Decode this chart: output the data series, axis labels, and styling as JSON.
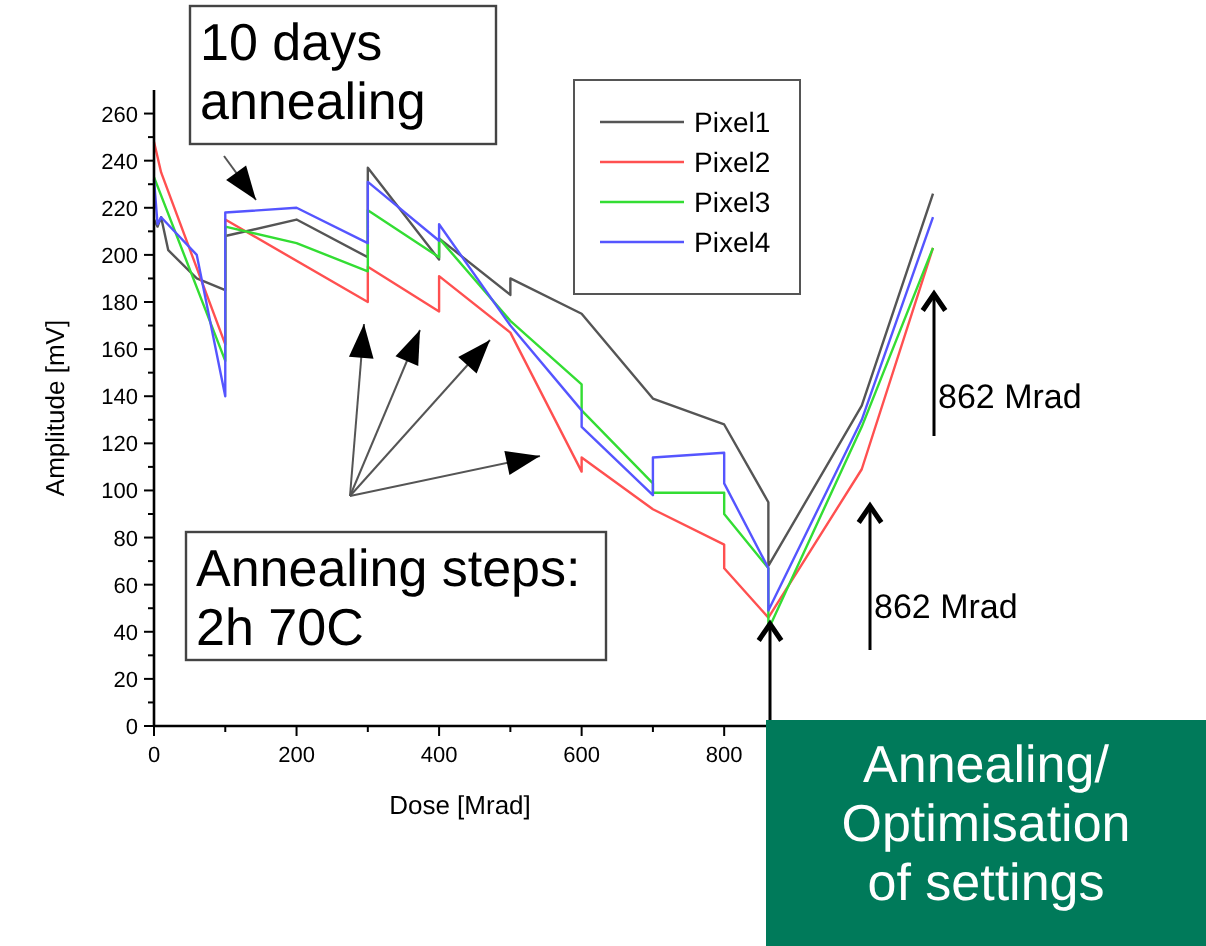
{
  "chart_data": {
    "type": "line",
    "xlabel": "Dose [Mrad]",
    "ylabel": "Amplitude [mV]",
    "xlim": [
      0,
      1100
    ],
    "ylim": [
      0,
      270
    ],
    "xticks": [
      0,
      {
        "value": 100,
        "label": null
      },
      200,
      {
        "value": 300,
        "label": null
      },
      400,
      {
        "value": 500,
        "label": null
      },
      600,
      {
        "value": 700,
        "label": null
      },
      800
    ],
    "yticks": [
      0,
      {
        "value": 10,
        "label": null
      },
      20,
      {
        "value": 30,
        "label": null
      },
      40,
      {
        "value": 50,
        "label": null
      },
      60,
      {
        "value": 70,
        "label": null
      },
      80,
      {
        "value": 90,
        "label": null
      },
      100,
      {
        "value": 110,
        "label": null
      },
      120,
      {
        "value": 130,
        "label": null
      },
      140,
      {
        "value": 150,
        "label": null
      },
      160,
      {
        "value": 170,
        "label": null
      },
      180,
      {
        "value": 190,
        "label": null
      },
      200,
      {
        "value": 210,
        "label": null
      },
      220,
      {
        "value": 230,
        "label": null
      },
      240,
      {
        "value": 250,
        "label": null
      },
      260
    ],
    "grid": false,
    "legend": "top right",
    "marker": "none",
    "line_style": "solid",
    "series": [
      {
        "name": "Pixel1",
        "color": "#555555",
        "x": [
          0,
          5,
          10,
          20,
          60,
          100,
          100,
          200,
          300,
          300,
          400,
          400,
          500,
          500,
          600,
          700,
          800,
          862,
          862,
          993,
          1093
        ],
        "values": [
          215,
          212,
          216,
          202,
          190,
          185,
          208,
          215,
          199,
          237,
          198,
          207,
          183,
          190,
          175,
          139,
          128,
          95,
          68,
          136,
          226
        ]
      },
      {
        "name": "Pixel2",
        "color": "#ff5050",
        "x": [
          0,
          10,
          100,
          100,
          300,
          300,
          400,
          400,
          500,
          600,
          600,
          700,
          800,
          800,
          862,
          993,
          1093
        ],
        "values": [
          248,
          235,
          162,
          215,
          180,
          195,
          176,
          191,
          167,
          108,
          114,
          92,
          77,
          67,
          46,
          109,
          203
        ]
      },
      {
        "name": "Pixel3",
        "color": "#33dd33",
        "x": [
          0,
          100,
          100,
          200,
          300,
          300,
          400,
          400,
          500,
          600,
          600,
          700,
          700,
          800,
          800,
          862,
          862,
          993,
          1093
        ],
        "values": [
          233,
          155,
          212,
          205,
          193,
          219,
          199,
          207,
          172,
          145,
          134,
          103,
          99,
          99,
          90,
          67,
          41,
          127,
          203
        ]
      },
      {
        "name": "Pixel4",
        "color": "#5555ff",
        "x": [
          0,
          5,
          10,
          60,
          100,
          100,
          200,
          300,
          300,
          400,
          400,
          500,
          600,
          600,
          700,
          700,
          800,
          800,
          862,
          862,
          993,
          1093
        ],
        "values": [
          232,
          213,
          216,
          200,
          140,
          218,
          220,
          205,
          231,
          206,
          213,
          170,
          134,
          127,
          98,
          114,
          116,
          103,
          67,
          49,
          130,
          216
        ]
      }
    ],
    "annotations": [
      "10 days annealing",
      "Annealing steps: 2h 70C",
      "862 Mrad",
      "862 Mrad",
      "Annealing/ Optimisation of settings"
    ]
  }
}
